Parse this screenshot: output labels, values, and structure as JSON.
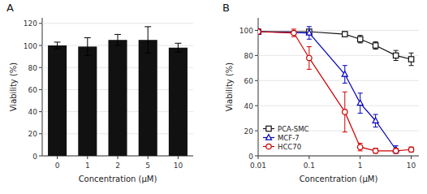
{
  "chart_data": [
    {
      "type": "bar",
      "title": "A",
      "categories": [
        "0",
        "1",
        "2",
        "5",
        "10"
      ],
      "values": [
        100,
        99,
        105,
        105,
        98
      ],
      "errors": [
        3,
        8,
        5,
        12,
        4
      ],
      "color": "#111111",
      "xlabel": "Concentration (μM)",
      "ylabel": "Viability (%)",
      "ylim": [
        0,
        125
      ],
      "yticks": [
        0,
        20,
        40,
        60,
        80,
        100,
        120
      ]
    },
    {
      "type": "scatter",
      "title": "B",
      "xlabel": "Concentration (μM)",
      "ylabel": "Viability (%)",
      "log": "x",
      "xlim": [
        0.01,
        14.125375446227544
      ],
      "xticks": [
        0.01,
        0.1,
        1,
        10
      ],
      "ylim": [
        0,
        110
      ],
      "yticks": [
        0,
        20,
        40,
        60,
        80,
        100
      ],
      "legend": "lower left",
      "series": [
        {
          "name": "PCA-SMC",
          "color": "#111111",
          "marker": "square",
          "line_style": "solid",
          "x": [
            0.01,
            0.1,
            0.5,
            1.0,
            2.0,
            5.0,
            10.0
          ],
          "values": [
            99,
            99,
            97,
            93,
            88,
            80,
            77
          ],
          "errors": [
            1,
            1,
            2,
            3,
            3,
            4,
            5
          ]
        },
        {
          "name": "MCF-7",
          "color": "#0000bb",
          "marker": "triangle",
          "line_style": "solid",
          "x": [
            0.01,
            0.1,
            0.5,
            1.0,
            2.0,
            5.0
          ],
          "values": [
            99,
            98,
            65,
            42,
            28,
            5
          ],
          "errors": [
            2,
            5,
            7,
            8,
            5,
            3
          ]
        },
        {
          "name": "HCC70",
          "color": "#cc0000",
          "marker": "circle",
          "line_style": "solid",
          "x": [
            0.01,
            0.05,
            0.1,
            0.5,
            1.0,
            2.0,
            5.0,
            10.0
          ],
          "values": [
            99,
            98,
            78,
            35,
            7,
            4,
            4,
            5
          ],
          "errors": [
            2,
            3,
            9,
            16,
            3,
            2,
            2,
            2
          ]
        }
      ]
    }
  ]
}
